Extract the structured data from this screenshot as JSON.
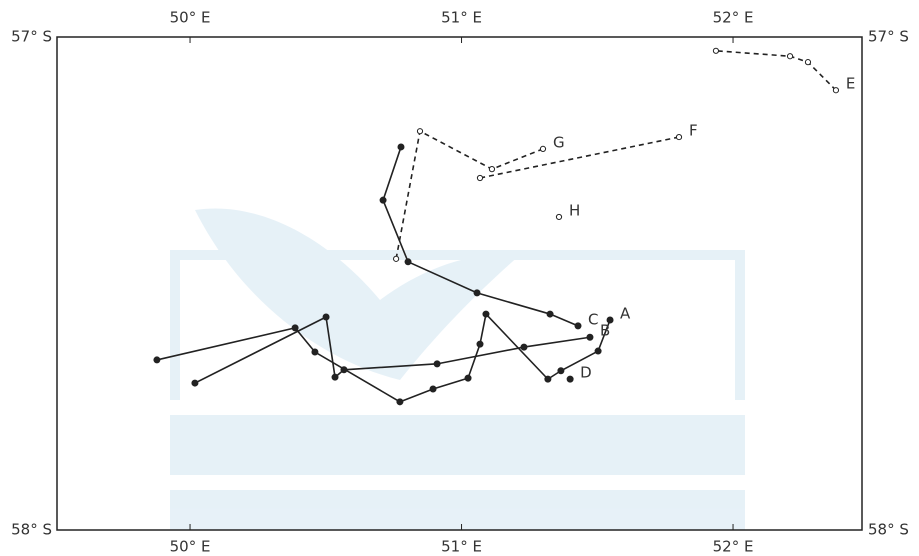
{
  "chart_data": {
    "type": "line",
    "xlim": [
      49.51,
      52.475
    ],
    "ylim": [
      58,
      57
    ],
    "xticks": [
      {
        "value": 50,
        "label": "50° E"
      },
      {
        "value": 51,
        "label": "51° E"
      },
      {
        "value": 52,
        "label": "52° E"
      }
    ],
    "yticks": [
      {
        "value": 57,
        "label": "57° S"
      },
      {
        "value": 58,
        "label": "58° S"
      }
    ],
    "color": "#222",
    "series": [
      {
        "name": "A",
        "dash": false,
        "marker": "filled",
        "x": [
          51.547,
          51.503,
          51.366,
          51.318,
          51.09,
          51.068,
          51.024,
          50.895,
          50.773,
          50.46,
          50.387,
          49.878
        ],
        "y": [
          57.574,
          57.637,
          57.677,
          57.694,
          57.562,
          57.623,
          57.692,
          57.714,
          57.74,
          57.639,
          57.59,
          57.655
        ]
      },
      {
        "name": "B",
        "dash": false,
        "marker": "filled",
        "x": [
          51.473,
          51.23,
          50.91,
          50.567,
          50.534,
          50.501,
          50.018
        ],
        "y": [
          57.609,
          57.629,
          57.663,
          57.675,
          57.69,
          57.568,
          57.702
        ]
      },
      {
        "name": "C",
        "dash": false,
        "marker": "filled",
        "x": [
          51.429,
          51.326,
          51.057,
          50.803,
          50.711,
          50.777
        ],
        "y": [
          57.586,
          57.562,
          57.519,
          57.456,
          57.331,
          57.223
        ]
      },
      {
        "name": "D",
        "dash": false,
        "marker": "filled",
        "x": [
          51.4
        ],
        "y": [
          57.694
        ]
      },
      {
        "name": "E",
        "dash": true,
        "marker": "open",
        "x": [
          52.379,
          52.276,
          52.21,
          51.937
        ],
        "y": [
          57.108,
          57.051,
          57.039,
          57.028
        ]
      },
      {
        "name": "F",
        "dash": true,
        "marker": "open",
        "x": [
          51.801,
          51.068
        ],
        "y": [
          57.203,
          57.286
        ]
      },
      {
        "name": "G",
        "dash": true,
        "marker": "open",
        "x": [
          51.3,
          51.112,
          50.847,
          50.759
        ],
        "y": [
          57.227,
          57.268,
          57.191,
          57.45
        ]
      },
      {
        "name": "H",
        "dash": true,
        "marker": "open",
        "x": [
          51.359
        ],
        "y": [
          57.365
        ]
      }
    ]
  }
}
